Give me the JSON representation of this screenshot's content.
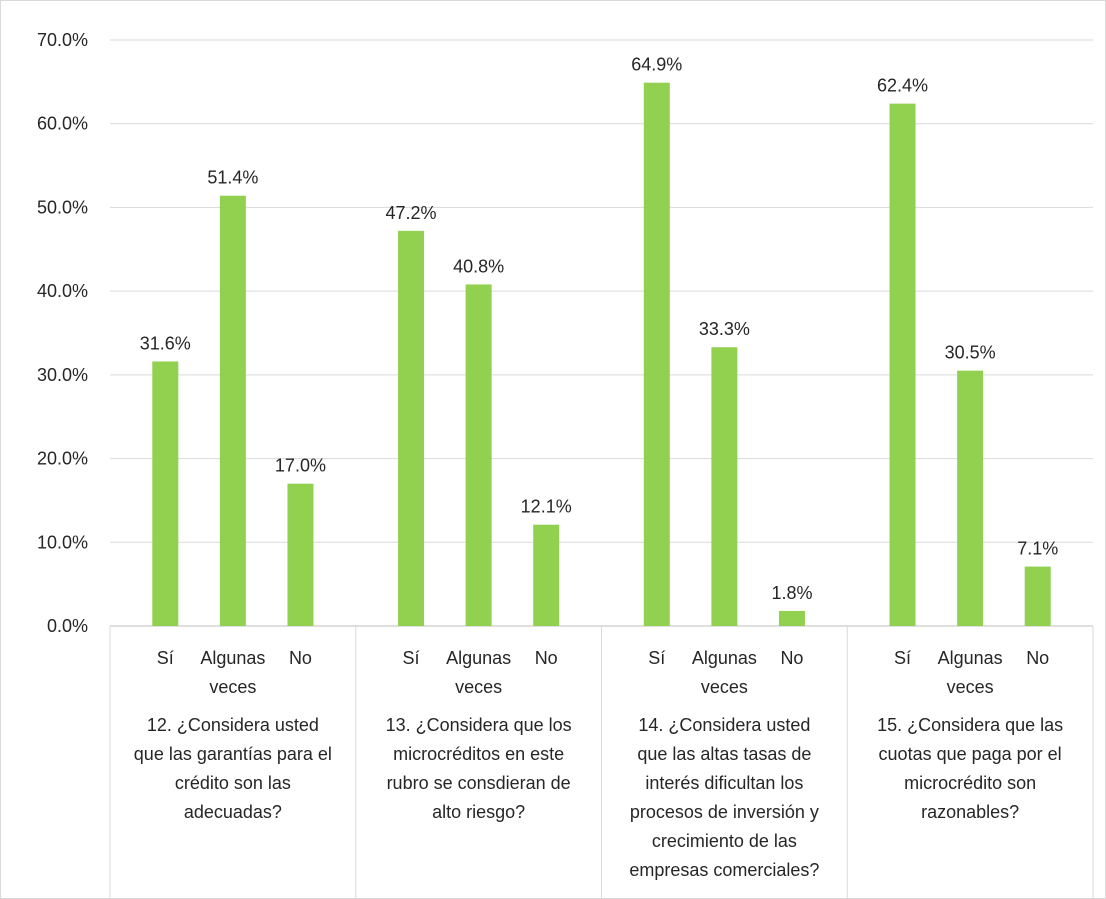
{
  "chart_data": {
    "type": "bar",
    "groups": [
      {
        "question": [
          "12. ¿Considera usted",
          "que las garantías para el",
          "crédito son las",
          "adecuadas?"
        ],
        "categories": [
          [
            "Sí"
          ],
          [
            "Algunas",
            "veces"
          ],
          [
            "No"
          ]
        ],
        "values": [
          31.6,
          51.4,
          17.0
        ],
        "labels": [
          "31.6%",
          "51.4%",
          "17.0%"
        ]
      },
      {
        "question": [
          "13. ¿Considera que los",
          "microcréditos en este",
          "rubro se consdieran de",
          "alto riesgo?"
        ],
        "categories": [
          [
            "Sí"
          ],
          [
            "Algunas",
            "veces"
          ],
          [
            "No"
          ]
        ],
        "values": [
          47.2,
          40.8,
          12.1
        ],
        "labels": [
          "47.2%",
          "40.8%",
          "12.1%"
        ]
      },
      {
        "question": [
          "14. ¿Considera usted",
          "que las altas tasas de",
          "interés dificultan los",
          "procesos de inversión y",
          "crecimiento de las",
          "empresas comerciales?"
        ],
        "categories": [
          [
            "Sí"
          ],
          [
            "Algunas",
            "veces"
          ],
          [
            "No"
          ]
        ],
        "values": [
          64.9,
          33.3,
          1.8
        ],
        "labels": [
          "64.9%",
          "33.3%",
          "1.8%"
        ]
      },
      {
        "question": [
          "15. ¿Considera que las",
          "cuotas que paga por el",
          "microcrédito son",
          "razonables?"
        ],
        "categories": [
          [
            "Sí"
          ],
          [
            "Algunas",
            "veces"
          ],
          [
            "No"
          ]
        ],
        "values": [
          62.4,
          30.5,
          7.1
        ],
        "labels": [
          "62.4%",
          "30.5%",
          "7.1%"
        ]
      }
    ],
    "ylim": [
      0,
      70
    ],
    "yticks": [
      0,
      10,
      20,
      30,
      40,
      50,
      60,
      70
    ],
    "ytick_labels": [
      "0.0%",
      "10.0%",
      "20.0%",
      "30.0%",
      "40.0%",
      "50.0%",
      "60.0%",
      "70.0%"
    ],
    "grid": true,
    "legend": "none",
    "bar_color": "#92d050",
    "grid_color": "#d9d9d9",
    "text_color": "#262626"
  }
}
